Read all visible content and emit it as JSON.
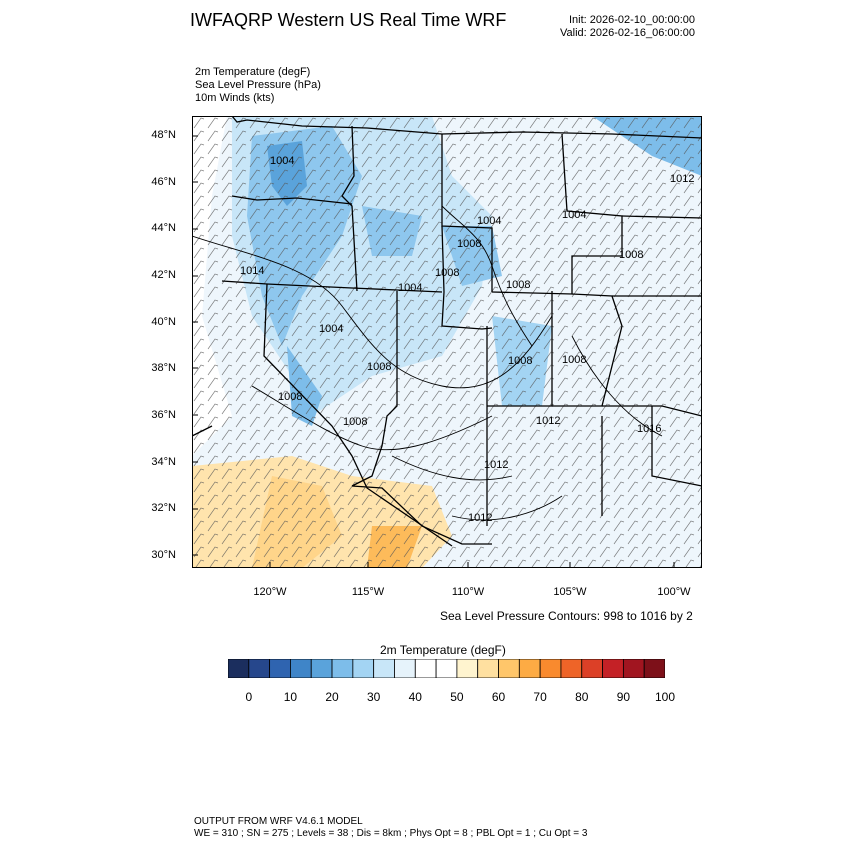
{
  "header": {
    "title": "IWFAQRP Western US Real Time WRF",
    "init": "Init: 2026-02-10_00:00:00",
    "valid": "Valid: 2026-02-16_06:00:00"
  },
  "variables": [
    "2m Temperature   (degF)",
    "Sea Level Pressure   (hPa)",
    "10m Winds   (kts)"
  ],
  "map": {
    "lat_labels": [
      "48°N",
      "46°N",
      "44°N",
      "42°N",
      "40°N",
      "38°N",
      "36°N",
      "34°N",
      "32°N",
      "30°N"
    ],
    "lon_labels": [
      "120°W",
      "115°W",
      "110°W",
      "105°W",
      "100°W"
    ],
    "pressure_labels": [
      "1004",
      "1012",
      "1004",
      "1004",
      "1008",
      "1008",
      "1008",
      "1014",
      "1004",
      "1008",
      "1004",
      "1008",
      "1008",
      "1008",
      "1008",
      "1012",
      "1016",
      "1008",
      "1012",
      "1012"
    ],
    "contour_note": "Sea Level Pressure Contours: 998 to 1016 by 2"
  },
  "colorbar": {
    "title": "2m Temperature  (degF)",
    "ticks": [
      "0",
      "10",
      "20",
      "30",
      "40",
      "50",
      "60",
      "70",
      "80",
      "90",
      "100"
    ],
    "colors": [
      "#1b2e5e",
      "#26478c",
      "#2f64b0",
      "#3f85c8",
      "#5aa3db",
      "#7dbdea",
      "#a3d4f3",
      "#c8e6f8",
      "#e6f3fb",
      "#ffffff",
      "#ffffff",
      "#fff4cf",
      "#ffe0a0",
      "#ffc66a",
      "#fdab44",
      "#f98a2e",
      "#ee6428",
      "#dc4027",
      "#c42126",
      "#a11520",
      "#7d1019"
    ]
  },
  "footer": {
    "line1": "OUTPUT FROM WRF V4.6.1 MODEL",
    "line2": "WE = 310 ; SN = 275 ; Levels = 38 ; Dis = 8km ; Phys Opt = 8 ; PBL Opt = 1 ; Cu Opt = 3"
  }
}
